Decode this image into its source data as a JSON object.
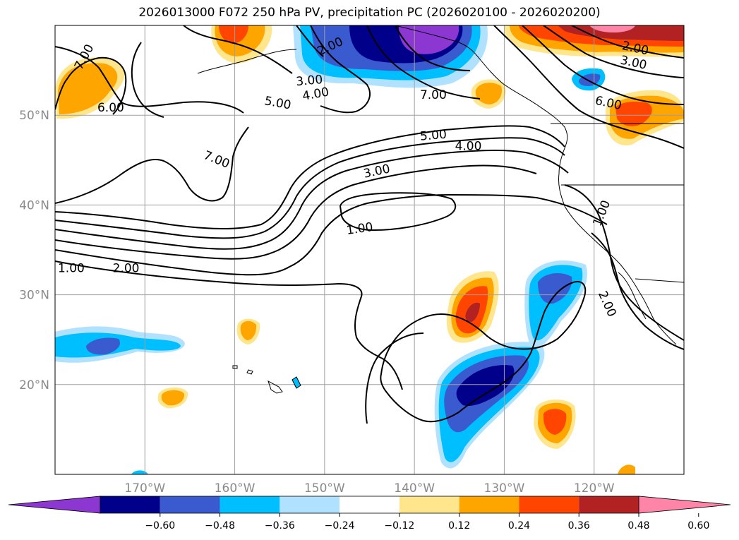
{
  "chart_data": {
    "type": "contour-map",
    "title": "2026013000 F072 250 hPa PV, precipitation PC (2026020100 - 2026020200)",
    "lon_range": [
      -180,
      -110
    ],
    "lat_range": [
      10,
      60
    ],
    "lat_ticks": [
      {
        "value": 50,
        "label": "50°N"
      },
      {
        "value": 40,
        "label": "40°N"
      },
      {
        "value": 30,
        "label": "30°N"
      },
      {
        "value": 20,
        "label": "20°N"
      }
    ],
    "lon_ticks": [
      {
        "value": -170,
        "label": "170°W"
      },
      {
        "value": -160,
        "label": "160°W"
      },
      {
        "value": -150,
        "label": "150°W"
      },
      {
        "value": -140,
        "label": "140°W"
      },
      {
        "value": -130,
        "label": "130°W"
      },
      {
        "value": -120,
        "label": "120°W"
      }
    ],
    "contour_labels": [
      {
        "text": "7.00",
        "lon": -176.8,
        "lat": 56.5,
        "angle": -62
      },
      {
        "text": "6.00",
        "lon": -173.8,
        "lat": 50.9,
        "angle": 0
      },
      {
        "text": "7.00",
        "lon": -162.0,
        "lat": 45.1,
        "angle": 22
      },
      {
        "text": "5.00",
        "lon": -155.2,
        "lat": 51.4,
        "angle": 10
      },
      {
        "text": "4.00",
        "lon": -151.0,
        "lat": 52.4,
        "angle": -10
      },
      {
        "text": "3.00",
        "lon": -151.7,
        "lat": 53.9,
        "angle": -5
      },
      {
        "text": "2.00",
        "lon": -149.4,
        "lat": 57.7,
        "angle": -25
      },
      {
        "text": "7.00",
        "lon": -137.9,
        "lat": 52.3,
        "angle": 0
      },
      {
        "text": "5.00",
        "lon": -137.9,
        "lat": 47.8,
        "angle": -5
      },
      {
        "text": "4.00",
        "lon": -134.0,
        "lat": 46.6,
        "angle": 0
      },
      {
        "text": "3.00",
        "lon": -144.2,
        "lat": 43.8,
        "angle": -12
      },
      {
        "text": "1.00",
        "lon": -146.1,
        "lat": 37.4,
        "angle": -8
      },
      {
        "text": "1.00",
        "lon": -178.2,
        "lat": 33.0,
        "angle": 0
      },
      {
        "text": "2.00",
        "lon": -172.1,
        "lat": 33.0,
        "angle": 0
      },
      {
        "text": "2.00",
        "lon": -115.4,
        "lat": 57.5,
        "angle": 12
      },
      {
        "text": "3.00",
        "lon": -115.6,
        "lat": 55.9,
        "angle": 12
      },
      {
        "text": "6.00",
        "lon": -118.4,
        "lat": 51.4,
        "angle": 12
      },
      {
        "text": "1.00",
        "lon": -119.2,
        "lat": 39.1,
        "angle": -68
      },
      {
        "text": "2.00",
        "lon": -118.5,
        "lat": 29.0,
        "angle": 66
      }
    ],
    "colorbar": {
      "colors": [
        "#8c37d2",
        "#00008b",
        "#3a5bd0",
        "#00bfff",
        "#b0e2ff",
        "#ffffff",
        "#ffe68c",
        "#ffa500",
        "#ff4500",
        "#b22222",
        "#ff85a8"
      ],
      "tick_values": [
        -0.6,
        -0.48,
        -0.36,
        -0.24,
        -0.12,
        0.12,
        0.24,
        0.36,
        0.48,
        0.6
      ],
      "tick_labels": [
        "−0.60",
        "−0.48",
        "−0.36",
        "−0.24",
        "−0.12",
        "0.12",
        "0.24",
        "0.36",
        "0.48",
        "0.60"
      ],
      "extend": "both"
    },
    "colors": {
      "grid": "#a0a0a0",
      "contour": "#000000",
      "coast": "#000000"
    }
  }
}
